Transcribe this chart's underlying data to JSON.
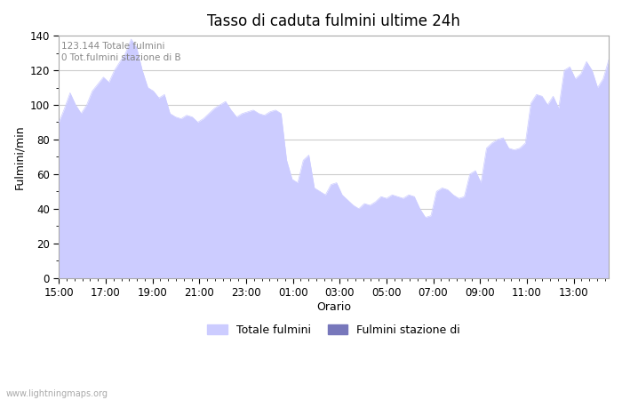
{
  "title": "Tasso di caduta fulmini ultime 24h",
  "xlabel": "Orario",
  "ylabel": "Fulmini/min",
  "ylim": [
    0,
    140
  ],
  "yticks": [
    0,
    20,
    40,
    60,
    80,
    100,
    120,
    140
  ],
  "xtick_labels": [
    "15:00",
    "17:00",
    "19:00",
    "21:00",
    "23:00",
    "01:00",
    "03:00",
    "05:00",
    "07:00",
    "09:00",
    "11:00",
    "13:00"
  ],
  "annotation_text": "123.144 Totale fulmini\n0 Tot.fulmini stazione di B",
  "legend_labels": [
    "Totale fulmini",
    "Fulmini stazione di"
  ],
  "fill_color": "#ccccff",
  "fill_color2": "#7777bb",
  "grid_color": "#cccccc",
  "background_color": "#ffffff",
  "watermark": "www.lightningmaps.org",
  "y_values": [
    90,
    98,
    107,
    100,
    95,
    100,
    108,
    112,
    116,
    113,
    120,
    125,
    130,
    138,
    133,
    120,
    110,
    108,
    104,
    106,
    95,
    93,
    92,
    94,
    93,
    90,
    92,
    95,
    98,
    100,
    102,
    97,
    93,
    95,
    96,
    97,
    95,
    94,
    96,
    97,
    95,
    68,
    57,
    55,
    68,
    71,
    52,
    50,
    48,
    54,
    55,
    48,
    45,
    42,
    40,
    43,
    42,
    44,
    47,
    46,
    48,
    47,
    46,
    48,
    47,
    40,
    35,
    36,
    50,
    52,
    51,
    48,
    46,
    47,
    60,
    62,
    55,
    75,
    78,
    80,
    81,
    75,
    74,
    75,
    78,
    101,
    106,
    105,
    100,
    105,
    98,
    120,
    122,
    115,
    118,
    125,
    120,
    110,
    115,
    126
  ]
}
